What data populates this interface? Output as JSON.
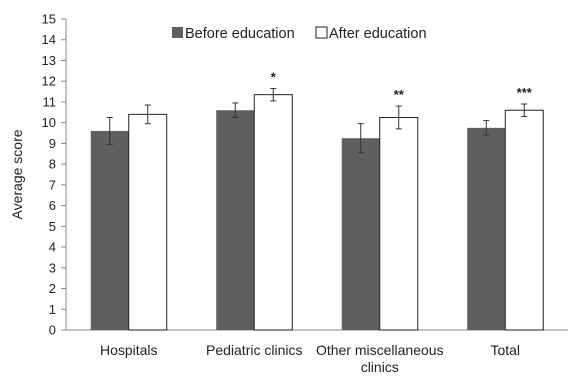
{
  "chart_data": {
    "type": "bar",
    "title": "",
    "xlabel": "",
    "ylabel": "Average  score",
    "ylim": [
      0,
      15
    ],
    "yticks": [
      0,
      1,
      2,
      3,
      4,
      5,
      6,
      7,
      8,
      9,
      10,
      11,
      12,
      13,
      14,
      15
    ],
    "categories": [
      {
        "lines": [
          "Hospitals"
        ]
      },
      {
        "lines": [
          "Pediatric clinics"
        ]
      },
      {
        "lines": [
          "Other miscellaneous",
          "clinics"
        ]
      },
      {
        "lines": [
          "Total"
        ]
      }
    ],
    "series": [
      {
        "name": "Before education",
        "color": "#5f5f5f",
        "fill": "solid",
        "values": [
          9.6,
          10.6,
          9.25,
          9.75
        ],
        "error": [
          0.65,
          0.35,
          0.7,
          0.35
        ]
      },
      {
        "name": "After education",
        "color": "#ffffff",
        "fill": "outline",
        "values": [
          10.4,
          11.35,
          10.25,
          10.6
        ],
        "error": [
          0.45,
          0.3,
          0.55,
          0.3
        ]
      }
    ],
    "annotations": [
      "",
      "*",
      "**",
      "***"
    ],
    "legend_position": "top-center",
    "grid": false
  }
}
